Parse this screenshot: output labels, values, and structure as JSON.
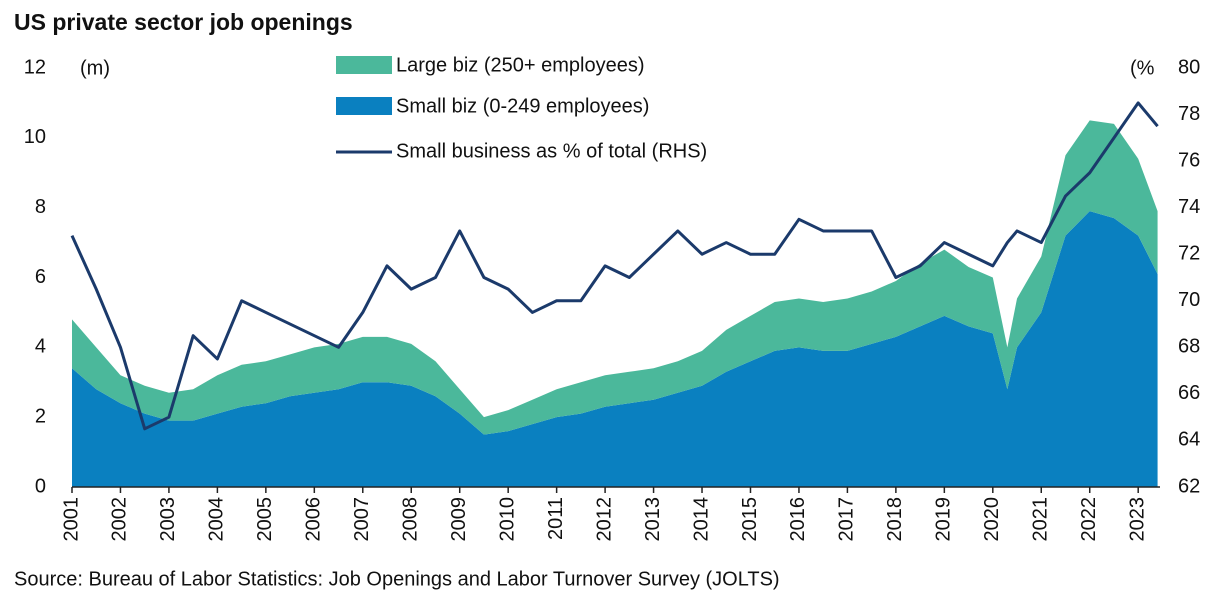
{
  "chart_data": {
    "type": "stacked-area-line",
    "title": "US private sector job openings",
    "y_unit": "(m)",
    "y2_unit": "(%",
    "source": "Source: Bureau of Labor Statistics: Job Openings and Labor Turnover Survey (JOLTS)",
    "x": [
      2001,
      2001.5,
      2002,
      2002.5,
      2003,
      2003.5,
      2004,
      2004.5,
      2005,
      2005.5,
      2006,
      2006.5,
      2007,
      2007.5,
      2008,
      2008.5,
      2009,
      2009.5,
      2010,
      2010.5,
      2011,
      2011.5,
      2012,
      2012.5,
      2013,
      2013.5,
      2014,
      2014.5,
      2015,
      2015.5,
      2016,
      2016.5,
      2017,
      2017.5,
      2018,
      2018.5,
      2019,
      2019.5,
      2020,
      2020.3,
      2020.5,
      2021,
      2021.5,
      2022,
      2022.5,
      2023,
      2023.4
    ],
    "series": [
      {
        "name": "Small biz (0-249 employees)",
        "color": "#0a80c0",
        "values": [
          3.4,
          2.8,
          2.4,
          2.1,
          1.9,
          1.9,
          2.1,
          2.3,
          2.4,
          2.6,
          2.7,
          2.8,
          3.0,
          3.0,
          2.9,
          2.6,
          2.1,
          1.5,
          1.6,
          1.8,
          2.0,
          2.1,
          2.3,
          2.4,
          2.5,
          2.7,
          2.9,
          3.3,
          3.6,
          3.9,
          4.0,
          3.9,
          3.9,
          4.1,
          4.3,
          4.6,
          4.9,
          4.6,
          4.4,
          2.8,
          4.0,
          5.0,
          7.2,
          7.9,
          7.7,
          7.2,
          6.1
        ]
      },
      {
        "name": "Large biz (250+ employees)",
        "color": "#4bb89b",
        "values": [
          1.4,
          1.2,
          0.8,
          0.8,
          0.8,
          0.9,
          1.1,
          1.2,
          1.2,
          1.2,
          1.3,
          1.3,
          1.3,
          1.3,
          1.2,
          1.0,
          0.7,
          0.5,
          0.6,
          0.7,
          0.8,
          0.9,
          0.9,
          0.9,
          0.9,
          0.9,
          1.0,
          1.2,
          1.3,
          1.4,
          1.4,
          1.4,
          1.5,
          1.5,
          1.6,
          1.8,
          1.9,
          1.7,
          1.6,
          1.2,
          1.4,
          1.6,
          2.3,
          2.6,
          2.7,
          2.2,
          1.8
        ]
      },
      {
        "name": "Small business as % of total (RHS)",
        "color": "#1b3a6b",
        "axis": "y2",
        "values": [
          72.8,
          70.5,
          68,
          64.5,
          65,
          68.5,
          67.5,
          70,
          69.5,
          69,
          68.5,
          68,
          69.5,
          71.5,
          70.5,
          71,
          73,
          71,
          70.5,
          69.5,
          70,
          70,
          71.5,
          71,
          72,
          73,
          72,
          72.5,
          72,
          72,
          73.5,
          73,
          73,
          73,
          71,
          71.5,
          72.5,
          72,
          71.5,
          72.5,
          73,
          72.5,
          74.5,
          75.5,
          77,
          78.5,
          77.5
        ]
      }
    ],
    "xlim": [
      2001,
      2023.45
    ],
    "xticks": [
      2001,
      2002,
      2003,
      2004,
      2005,
      2006,
      2007,
      2008,
      2009,
      2010,
      2011,
      2012,
      2013,
      2014,
      2015,
      2016,
      2017,
      2018,
      2019,
      2020,
      2021,
      2022,
      2023
    ],
    "ylim": [
      0,
      12
    ],
    "yticks": [
      0,
      2,
      4,
      6,
      8,
      10,
      12
    ],
    "y2lim": [
      62,
      80
    ],
    "y2ticks": [
      62,
      64,
      66,
      68,
      70,
      72,
      74,
      76,
      78,
      80
    ]
  }
}
